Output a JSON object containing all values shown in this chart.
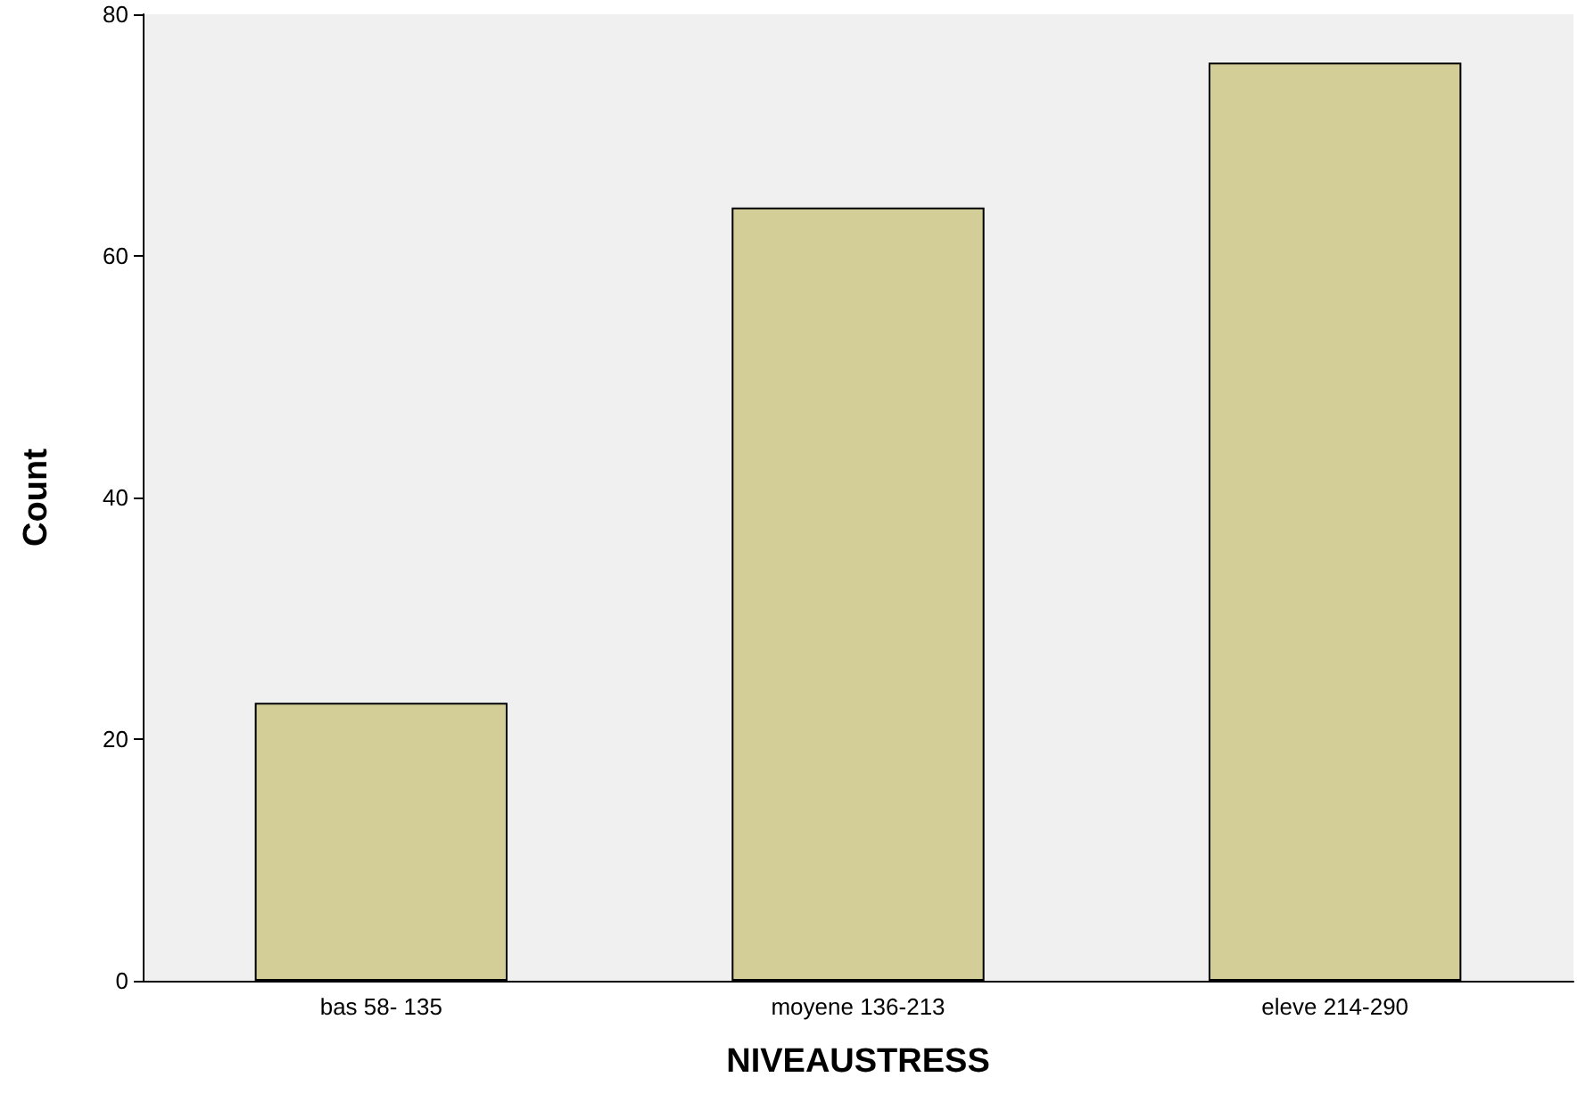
{
  "chart_data": {
    "type": "bar",
    "xlabel": "NIVEAUSTRESS",
    "ylabel": "Count",
    "categories": [
      "bas 58- 135",
      "moyene 136-213",
      "eleve 214-290"
    ],
    "values": [
      23,
      64,
      76
    ],
    "color": "#d3ce98",
    "ylim": [
      0,
      80
    ],
    "yticks": [
      0,
      20,
      40,
      60,
      80
    ],
    "grid": false
  }
}
